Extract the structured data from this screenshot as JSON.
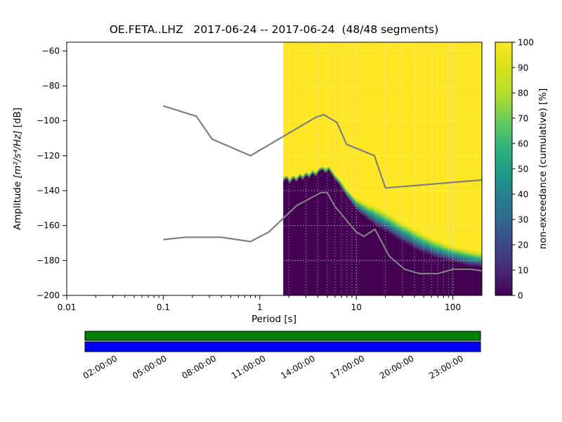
{
  "chart_data": {
    "type": "heatmap",
    "title": "OE.FETA..LHZ   2017-06-24 -- 2017-06-24  (48/48 segments)",
    "xlabel": "Period [s]",
    "ylabel_prefix": "Amplitude ",
    "ylabel_math": "[m²/s⁴/Hz]",
    "ylabel_suffix": " [dB]",
    "xscale": "log",
    "xlim": [
      0.01,
      200
    ],
    "ylim": [
      -200,
      -55
    ],
    "x_ticks": {
      "values": [
        0.01,
        0.1,
        1,
        10,
        100
      ],
      "labels": [
        "0.01",
        "0.1",
        "1",
        "10",
        "100"
      ]
    },
    "y_ticks": {
      "values": [
        -200,
        -180,
        -160,
        -140,
        -120,
        -100,
        -80,
        -60
      ],
      "labels": [
        "−200",
        "−180",
        "−160",
        "−140",
        "−120",
        "−100",
        "−80",
        "−60"
      ]
    },
    "grid": true,
    "colormap": [
      "#440154",
      "#482878",
      "#3e4989",
      "#31688e",
      "#26828e",
      "#1f9e89",
      "#35b779",
      "#6ece58",
      "#b5de2b",
      "#d8e219",
      "#fde725"
    ],
    "colorbar": {
      "label": "non-exceedance (cumulative) [%]",
      "ticks": [
        0,
        10,
        20,
        30,
        40,
        50,
        60,
        70,
        80,
        90,
        100
      ],
      "range": [
        0,
        100
      ]
    },
    "heatmap": {
      "start_period_s": 1.75,
      "periods": [
        1.75,
        1.9,
        2.05,
        2.2,
        2.4,
        2.6,
        2.8,
        3.0,
        3.25,
        3.5,
        3.8,
        4.1,
        4.45,
        4.8,
        5.2,
        5.6,
        6.1,
        6.6,
        7.1,
        7.7,
        8.35,
        9.0,
        9.8,
        10.6,
        11.5,
        12.4,
        13.4,
        14.5,
        15.7,
        17.0,
        18.4,
        20,
        23,
        26,
        30,
        35,
        40,
        47,
        55,
        65,
        75,
        90,
        105,
        125,
        150,
        175,
        200
      ],
      "db_nonexceed_0": [
        -135,
        -133,
        -136,
        -133,
        -135,
        -132,
        -134,
        -131,
        -133,
        -130,
        -132,
        -129,
        -128,
        -130,
        -128,
        -131,
        -134,
        -136,
        -139,
        -142,
        -145,
        -147,
        -150,
        -152,
        -154,
        -155,
        -157,
        -158,
        -160,
        -161,
        -162,
        -163,
        -165,
        -167,
        -169,
        -171,
        -173,
        -175,
        -176,
        -178,
        -179,
        -180,
        -181,
        -182,
        -183,
        -183,
        -184
      ],
      "db_nonexceed_100": [
        -132,
        -131,
        -133,
        -131,
        -132,
        -130,
        -131,
        -129,
        -130,
        -128,
        -129,
        -127,
        -126,
        -127,
        -126,
        -128,
        -131,
        -133,
        -135,
        -138,
        -140,
        -142,
        -144,
        -145,
        -146,
        -147,
        -148,
        -148,
        -149,
        -150,
        -151,
        -152,
        -154,
        -156,
        -158,
        -160,
        -162,
        -164,
        -166,
        -168,
        -169,
        -171,
        -172,
        -173,
        -174,
        -175,
        -175
      ]
    },
    "noise_models": {
      "high": [
        [
          0.1,
          -91.5
        ],
        [
          0.22,
          -97.4
        ],
        [
          0.32,
          -110.5
        ],
        [
          0.8,
          -120.0
        ],
        [
          3.8,
          -98.0
        ],
        [
          4.6,
          -96.5
        ],
        [
          6.3,
          -101.0
        ],
        [
          7.9,
          -113.5
        ],
        [
          15.4,
          -120.0
        ],
        [
          20,
          -138.5
        ],
        [
          200,
          -133.9
        ]
      ],
      "low": [
        [
          0.1,
          -168.0
        ],
        [
          0.17,
          -166.7
        ],
        [
          0.4,
          -166.7
        ],
        [
          0.8,
          -169.2
        ],
        [
          1.24,
          -163.7
        ],
        [
          2.4,
          -148.6
        ],
        [
          4.3,
          -141.1
        ],
        [
          5.0,
          -141.1
        ],
        [
          6.0,
          -149.0
        ],
        [
          10,
          -163.7
        ],
        [
          12,
          -166.2
        ],
        [
          15.6,
          -162.1
        ],
        [
          21.9,
          -177.5
        ],
        [
          31.6,
          -185.0
        ],
        [
          45,
          -187.5
        ],
        [
          70,
          -187.5
        ],
        [
          101,
          -185.0
        ],
        [
          154,
          -185.0
        ],
        [
          200,
          -185.9
        ]
      ]
    },
    "coverage_bar": {
      "labels": [
        "02:00:00",
        "05:00:00",
        "08:00:00",
        "11:00:00",
        "14:00:00",
        "17:00:00",
        "20:00:00",
        "23:00:00"
      ],
      "hours": [
        2,
        5,
        8,
        11,
        14,
        17,
        20,
        23
      ],
      "total_hours": 24,
      "colors": {
        "top": "#008000",
        "bottom": "#0000ff"
      }
    }
  }
}
